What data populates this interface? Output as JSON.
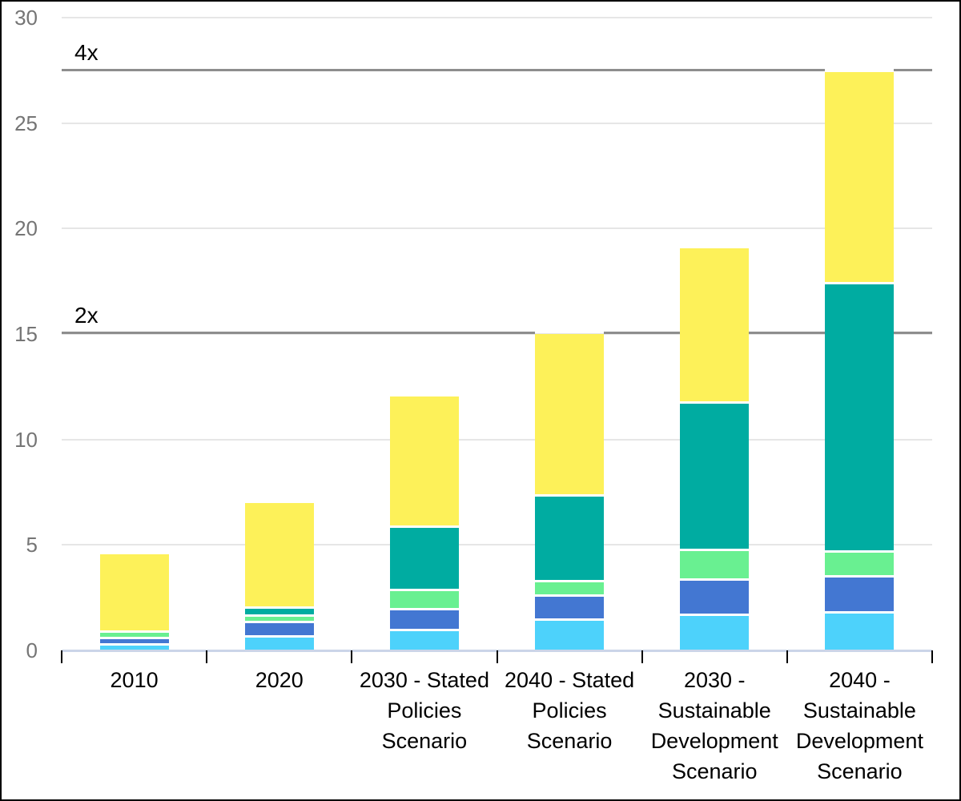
{
  "chart_data": {
    "type": "bar",
    "stacked": true,
    "title": "",
    "legend": "none",
    "grid": "horizontal",
    "categories": [
      {
        "label": "2010",
        "lines": [
          "2010"
        ]
      },
      {
        "label": "2020",
        "lines": [
          "2020"
        ]
      },
      {
        "label": "2030 - Stated Policies Scenario",
        "lines": [
          "2030 - Stated",
          "Policies",
          "Scenario"
        ]
      },
      {
        "label": "2040 - Stated Policies Scenario",
        "lines": [
          "2040 - Stated",
          "Policies",
          "Scenario"
        ]
      },
      {
        "label": "2030 - Sustainable Development Scenario",
        "lines": [
          "2030 -",
          "Sustainable",
          "Development",
          "Scenario"
        ]
      },
      {
        "label": "2040 - Sustainable Development Scenario",
        "lines": [
          "2040 -",
          "Sustainable",
          "Development",
          "Scenario"
        ]
      }
    ],
    "series": [
      {
        "name": "light-blue",
        "color": "#4DD2FB",
        "values": [
          0.3,
          0.65,
          0.95,
          1.45,
          1.7,
          1.8
        ]
      },
      {
        "name": "blue",
        "color": "#4377D2",
        "values": [
          0.3,
          0.7,
          1.0,
          1.15,
          1.65,
          1.7
        ]
      },
      {
        "name": "light-green",
        "color": "#69F091",
        "values": [
          0.3,
          0.3,
          0.9,
          0.7,
          1.4,
          1.2
        ]
      },
      {
        "name": "teal",
        "color": "#00ACA1",
        "values": [
          0.0,
          0.4,
          3.0,
          4.05,
          7.0,
          12.7
        ]
      },
      {
        "name": "yellow",
        "color": "#FDF159",
        "values": [
          3.65,
          4.95,
          6.2,
          7.65,
          7.3,
          10.0
        ]
      }
    ],
    "totals": [
      4.55,
      7.0,
      12.05,
      15.0,
      19.05,
      27.4
    ],
    "y_axis": {
      "min": 0,
      "max": 30,
      "tick_interval": 5,
      "tick_labels": [
        "0",
        "5",
        "10",
        "15",
        "20",
        "25",
        "30"
      ]
    },
    "reference_lines": [
      {
        "label": "2x",
        "value": 15.05
      },
      {
        "label": "4x",
        "value": 27.5
      }
    ]
  },
  "style_colors": {
    "background": "#FFFFFF",
    "frame_border": "#000000",
    "gridline": "#E6E6E6",
    "baseline": "#CBD5E8",
    "reference_line": "#8E8E8E",
    "y_tick_text": "#757575",
    "x_label_text": "#000000",
    "x_tick_mark": "#000000",
    "segment_separator": "#FFFFFF"
  }
}
